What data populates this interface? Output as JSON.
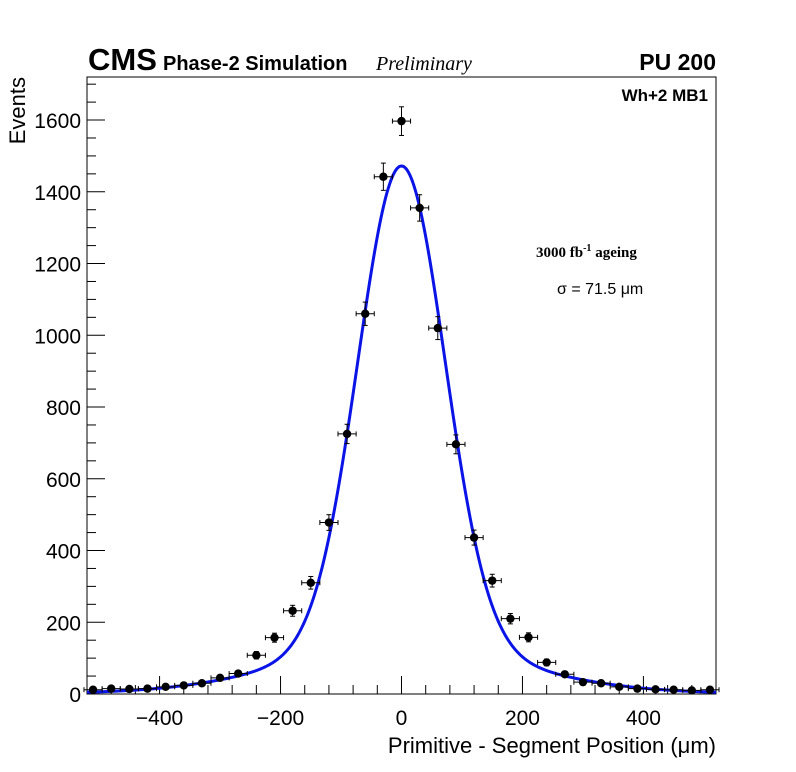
{
  "header": {
    "experiment": "CMS",
    "simulation": "Phase-2 Simulation",
    "status": "Preliminary",
    "pileup": "PU 200"
  },
  "labels": {
    "chamber": "Wh+2 MB1",
    "ageing_value": "3000 fb",
    "ageing_sup": "-1",
    "ageing_word": " ageing",
    "sigma": "σ = 71.5 μm"
  },
  "colors": {
    "fit": "#0a14e6",
    "points": "#000000",
    "frame": "#000000"
  },
  "chart_data": {
    "type": "scatter",
    "title": "",
    "xlabel": "Primitive - Segment Position (μm)",
    "ylabel": "Events",
    "xlim": [
      -520,
      520
    ],
    "ylim": [
      0,
      1720
    ],
    "xticks": [
      -400,
      -200,
      0,
      200,
      400
    ],
    "xticklabels": [
      "−400",
      "−200",
      "0",
      "200",
      "400"
    ],
    "yticks": [
      0,
      200,
      400,
      600,
      800,
      1000,
      1200,
      1400,
      1600
    ],
    "yticklabels": [
      "0",
      "200",
      "400",
      "600",
      "800",
      "1000",
      "1200",
      "1400",
      "1600"
    ],
    "bin_width": 30,
    "series": [
      {
        "name": "data",
        "x": [
          -510,
          -480,
          -450,
          -420,
          -390,
          -360,
          -330,
          -300,
          -270,
          -240,
          -210,
          -180,
          -150,
          -120,
          -90,
          -60,
          -30,
          0,
          30,
          60,
          90,
          120,
          150,
          180,
          210,
          240,
          270,
          300,
          330,
          360,
          390,
          420,
          450,
          480,
          510
        ],
        "y": [
          12,
          15,
          14,
          15,
          20,
          24,
          30,
          45,
          57,
          108,
          157,
          232,
          310,
          478,
          725,
          1060,
          1442,
          1597,
          1355,
          1020,
          696,
          436,
          316,
          210,
          158,
          88,
          55,
          33,
          30,
          20,
          15,
          13,
          12,
          10,
          12
        ]
      }
    ],
    "fit": {
      "name": "fit",
      "components": [
        {
          "amplitude": 1340,
          "mean": 0,
          "sigma": 71.5
        },
        {
          "amplitude": 130,
          "mean": 0,
          "sigma": 190
        }
      ],
      "constant": 2
    }
  }
}
